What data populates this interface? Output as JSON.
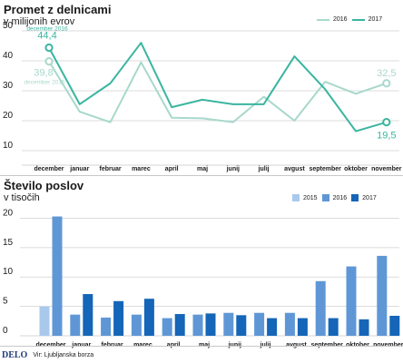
{
  "chart_data": [
    {
      "type": "line",
      "title": "Promet z delnicami",
      "subtitle": "v milijonih evrov",
      "categories": [
        "december",
        "januar",
        "februar",
        "marec",
        "april",
        "maj",
        "junij",
        "julij",
        "avgust",
        "september",
        "oktober",
        "november"
      ],
      "series": [
        {
          "name": "2016",
          "color": "#a8d8cc",
          "values": [
            39.8,
            23.0,
            19.5,
            39.5,
            21.0,
            20.8,
            19.5,
            28.0,
            20.0,
            33.0,
            29.0,
            32.5
          ]
        },
        {
          "name": "2017",
          "color": "#3ab5a0",
          "values": [
            44.4,
            25.5,
            32.5,
            46.0,
            24.5,
            27.0,
            25.5,
            25.5,
            41.5,
            30.5,
            16.5,
            19.5
          ]
        }
      ],
      "annotations": [
        {
          "series": "2017",
          "index": 0,
          "value_label": "44,4",
          "caption": "december 2016"
        },
        {
          "series": "2016",
          "index": 0,
          "value_label": "39,8",
          "caption": "december 2015"
        },
        {
          "series": "2016",
          "index": 11,
          "value_label": "32,5"
        },
        {
          "series": "2017",
          "index": 11,
          "value_label": "19,5"
        }
      ],
      "yticks": [
        10,
        20,
        30,
        40,
        50
      ],
      "ylim": [
        10,
        50
      ],
      "grid": true,
      "legend_position": "top-right"
    },
    {
      "type": "bar",
      "title": "Število poslov",
      "subtitle": "v tisočih",
      "categories": [
        "december",
        "januar",
        "februar",
        "marec",
        "april",
        "maj",
        "junij",
        "julij",
        "avgust",
        "september",
        "oktober",
        "november"
      ],
      "series": [
        {
          "name": "2015",
          "color": "#a9c9ec",
          "values": [
            5.0,
            null,
            null,
            null,
            null,
            null,
            null,
            null,
            null,
            null,
            null,
            null
          ]
        },
        {
          "name": "2016",
          "color": "#5f97d6",
          "values": [
            20.3,
            3.6,
            3.1,
            3.6,
            3.0,
            3.6,
            3.9,
            3.9,
            3.9,
            9.3,
            11.8,
            13.6
          ]
        },
        {
          "name": "2017",
          "color": "#1565b8",
          "values": [
            null,
            7.1,
            5.9,
            6.3,
            3.7,
            3.8,
            3.5,
            3.0,
            3.0,
            3.0,
            2.8,
            3.4
          ]
        }
      ],
      "yticks": [
        0,
        5,
        10,
        15,
        20
      ],
      "ylim": [
        0,
        21
      ],
      "grid": true,
      "legend_position": "top-right"
    }
  ],
  "footer": {
    "brand": "DELO",
    "source": "Vir: Ljubljanska borza"
  }
}
